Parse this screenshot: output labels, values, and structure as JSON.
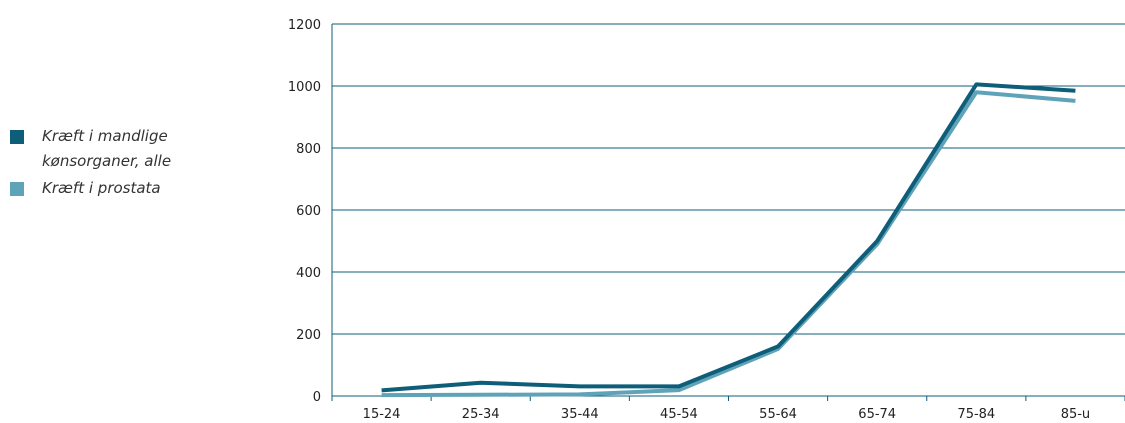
{
  "chart_data": {
    "type": "line",
    "categories": [
      "15-24",
      "25-34",
      "35-44",
      "45-54",
      "55-64",
      "65-74",
      "75-84",
      "85-u"
    ],
    "series": [
      {
        "name": "Kræft i mandlige kønsorganer, alle",
        "values": [
          18,
          43,
          31,
          31,
          160,
          500,
          1005,
          985
        ],
        "color": "#0e5d79"
      },
      {
        "name": "Kræft i prostata",
        "values": [
          3,
          4,
          5,
          19,
          152,
          490,
          980,
          952
        ],
        "color": "#5fa3b9"
      }
    ],
    "ylim": [
      0,
      1200
    ],
    "yticks": [
      0,
      200,
      400,
      600,
      800,
      1000,
      1200
    ],
    "grid": true,
    "legend": "left",
    "title": "",
    "xlabel": "",
    "ylabel": ""
  }
}
